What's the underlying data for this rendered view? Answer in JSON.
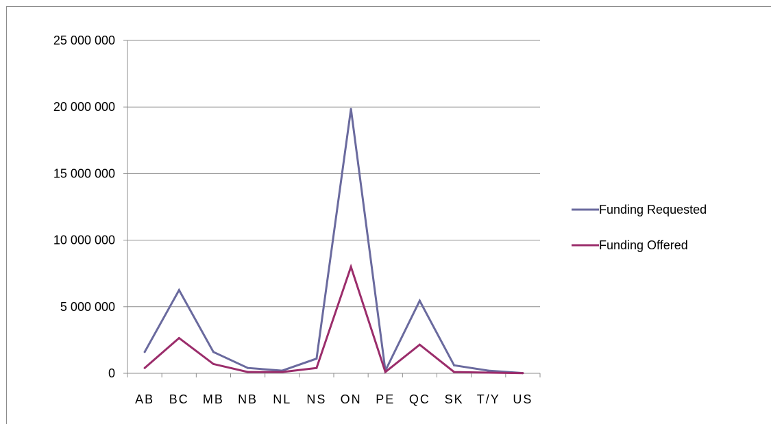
{
  "chart_data": {
    "type": "line",
    "categories": [
      "AB",
      "BC",
      "MB",
      "NB",
      "NL",
      "NS",
      "ON",
      "PE",
      "QC",
      "SK",
      "T/Y",
      "US"
    ],
    "series": [
      {
        "name": "Funding Requested",
        "color": "#6a6a9e",
        "values": [
          1600000,
          6250000,
          1600000,
          400000,
          200000,
          1100000,
          19850000,
          200000,
          5450000,
          600000,
          200000,
          20000
        ]
      },
      {
        "name": "Funding Offered",
        "color": "#9b2d6b",
        "values": [
          400000,
          2650000,
          700000,
          100000,
          100000,
          400000,
          8000000,
          100000,
          2150000,
          100000,
          50000,
          10000
        ]
      }
    ],
    "ylim": [
      0,
      25000000
    ],
    "yticks": [
      0,
      5000000,
      10000000,
      15000000,
      20000000,
      25000000
    ],
    "ytick_labels": [
      "0",
      "5 000 000",
      "10 000 000",
      "15 000 000",
      "20 000 000",
      "25 000 000"
    ],
    "grid": true,
    "legend_position": "right"
  }
}
